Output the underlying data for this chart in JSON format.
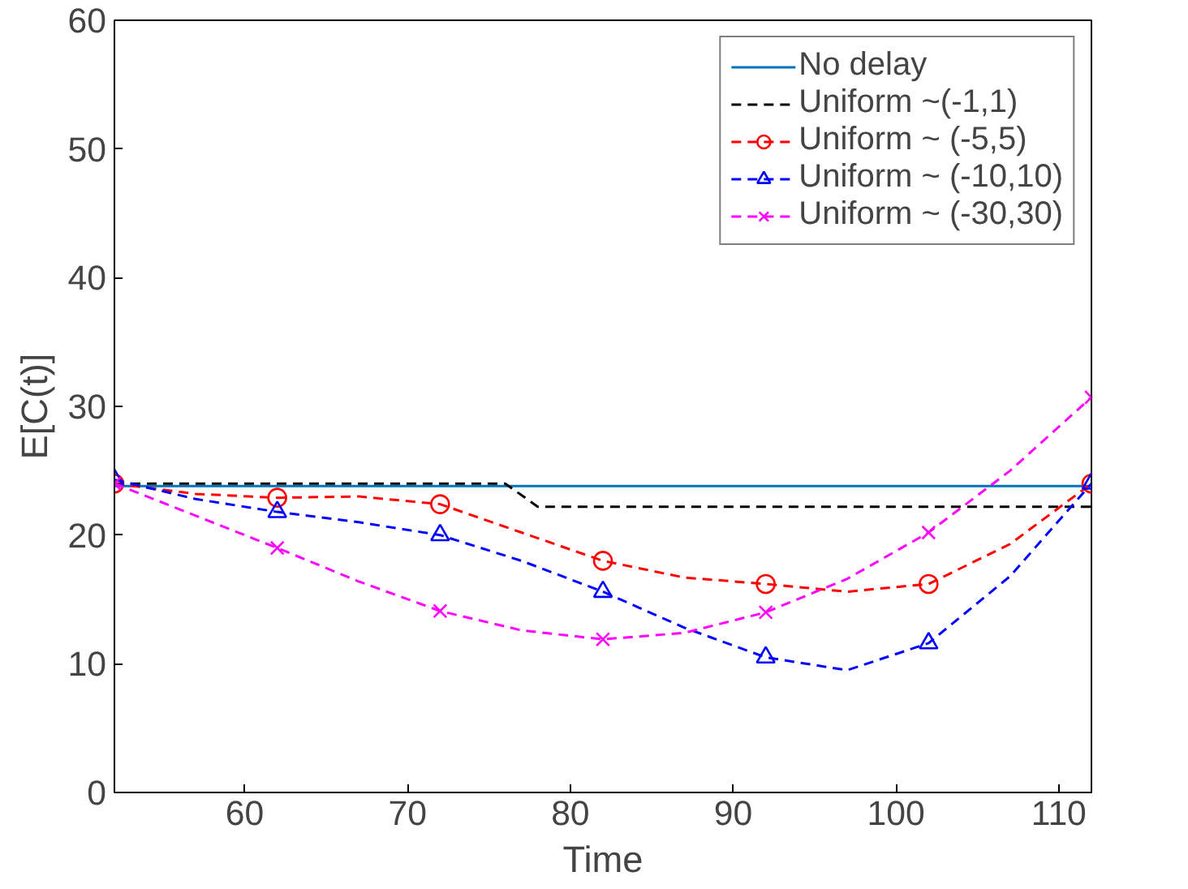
{
  "chart_data": {
    "type": "line",
    "xlabel": "Time",
    "ylabel": "E[C(t)]",
    "xlim": [
      52,
      112
    ],
    "ylim": [
      0,
      60
    ],
    "xticks": [
      60,
      70,
      80,
      90,
      100,
      110
    ],
    "yticks": [
      0,
      10,
      20,
      30,
      40,
      50,
      60
    ],
    "legend": "top right",
    "grid": false,
    "series": [
      {
        "name": "No delay",
        "color": "#0072bd",
        "line_style": "solid",
        "marker": "none",
        "x": [
          52,
          112
        ],
        "values": [
          23.8,
          23.8
        ]
      },
      {
        "name": "Uniform ~(-1,1)",
        "color": "#000000",
        "line_style": "dashed",
        "marker": "none",
        "x": [
          52,
          76,
          78,
          112
        ],
        "values": [
          24,
          24,
          22.2,
          22.2
        ]
      },
      {
        "name": "Uniform ~ (-5,5)",
        "color": "#ff0000",
        "line_style": "dashed",
        "marker": "none",
        "x": [
          52,
          57,
          62,
          67,
          72,
          77,
          82,
          87,
          92,
          97,
          102,
          107,
          112
        ],
        "values": [
          24,
          23.2,
          22.9,
          23.0,
          22.4,
          20.2,
          18,
          16.7,
          16.2,
          15.6,
          16.2,
          19.3,
          24
        ]
      },
      {
        "type": "scatter",
        "color": "#ff0000",
        "marker": "circle",
        "x": [
          52,
          62,
          72,
          82,
          92,
          102,
          112
        ],
        "values": [
          24,
          22.9,
          22.4,
          18,
          16.2,
          16.2,
          24
        ]
      },
      {
        "name": "Uniform ~ (-10,10)",
        "color": "#0000ff",
        "line_style": "dashed",
        "marker": "none",
        "x": [
          52,
          57,
          62,
          67,
          72,
          77,
          82,
          87,
          92,
          97,
          102,
          107,
          112
        ],
        "values": [
          24.3,
          22.8,
          21.8,
          21,
          20,
          18,
          15.6,
          12.8,
          10.5,
          9.5,
          11.6,
          16.8,
          24
        ]
      },
      {
        "type": "scatter",
        "color": "#0000ff",
        "marker": "triangle",
        "x": [
          52,
          62,
          72,
          82,
          92,
          102,
          112
        ],
        "values": [
          24.3,
          21.8,
          20,
          15.6,
          10.5,
          11.6,
          24
        ]
      },
      {
        "name": "Uniform ~ (-30,30)",
        "color": "#ff00ff",
        "line_style": "dashed",
        "marker": "none",
        "x": [
          52,
          57,
          62,
          67,
          72,
          77,
          82,
          87,
          92,
          97,
          102,
          107,
          112
        ],
        "values": [
          24,
          21.5,
          19,
          16.4,
          14.1,
          12.6,
          11.9,
          12.4,
          14,
          16.6,
          20.2,
          25,
          30.7
        ]
      },
      {
        "type": "scatter",
        "color": "#ff00ff",
        "marker": "cross",
        "x": [
          52,
          62,
          72,
          82,
          92,
          102,
          112
        ],
        "values": [
          24,
          19,
          14.1,
          11.9,
          14,
          20.2,
          30.7
        ]
      }
    ]
  }
}
